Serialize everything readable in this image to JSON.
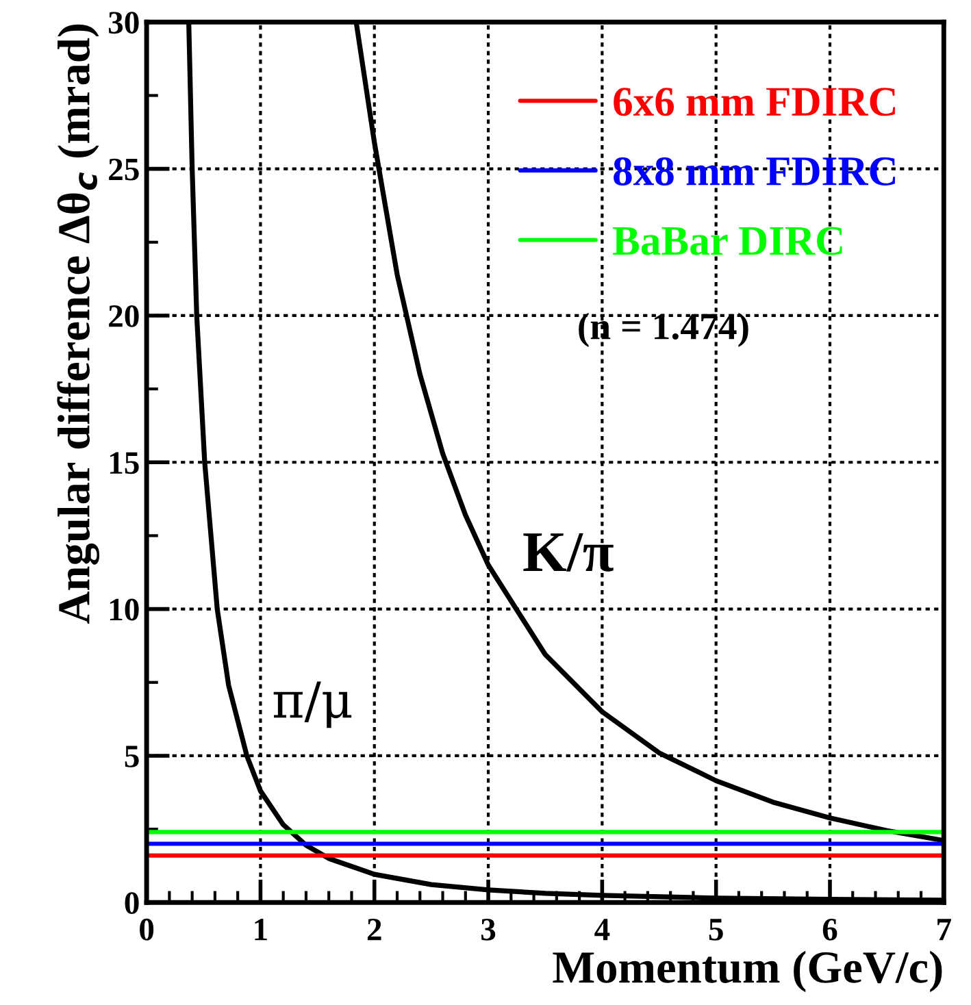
{
  "chart_data": {
    "type": "line",
    "xlabel": "Momentum (GeV/c)",
    "ylabel": "Angular difference Δθ$_{c}$ (mrad)",
    "xlim": [
      0,
      7
    ],
    "ylim": [
      0,
      30
    ],
    "xticks": [
      0,
      1,
      2,
      3,
      4,
      5,
      6,
      7
    ],
    "yticks": [
      0,
      5,
      10,
      15,
      20,
      25,
      30
    ],
    "grid": true,
    "legend": "top right",
    "marker": "none",
    "line_style": "solid",
    "annotations": [
      "(n = 1.474)"
    ],
    "series": [
      {
        "name": "π/μ",
        "color": "#000000",
        "x": [
          0.37,
          0.4,
          0.44,
          0.51,
          0.62,
          0.72,
          0.88,
          1.0,
          1.2,
          1.4,
          1.6,
          2.0,
          2.5,
          3.0,
          3.5,
          4.0,
          5.0,
          6.0,
          7.0
        ],
        "values": [
          30,
          25,
          20,
          15,
          10,
          7.4,
          5,
          3.8,
          2.65,
          1.95,
          1.5,
          0.96,
          0.61,
          0.43,
          0.31,
          0.24,
          0.15,
          0.11,
          0.08
        ]
      },
      {
        "name": "K/π",
        "color": "#000000",
        "x": [
          1.84,
          2.0,
          2.2,
          2.4,
          2.6,
          2.8,
          3.0,
          3.5,
          4.0,
          4.5,
          5.0,
          5.5,
          6.0,
          6.5,
          7.0
        ],
        "values": [
          30,
          25.9,
          21.4,
          18,
          15.3,
          13.2,
          11.5,
          8.45,
          6.5,
          5.1,
          4.15,
          3.42,
          2.88,
          2.45,
          2.11
        ]
      },
      {
        "name": "6x6 mm FDIRC",
        "color": "#ff0000",
        "x": [
          0,
          7
        ],
        "values": [
          1.6,
          1.6
        ]
      },
      {
        "name": "8x8 mm FDIRC",
        "color": "#0000ff",
        "x": [
          0,
          7
        ],
        "values": [
          2.0,
          2.0
        ]
      },
      {
        "name": "BaBar DIRC",
        "color": "#00ff00",
        "x": [
          0,
          7
        ],
        "values": [
          2.4,
          2.4
        ]
      }
    ]
  }
}
